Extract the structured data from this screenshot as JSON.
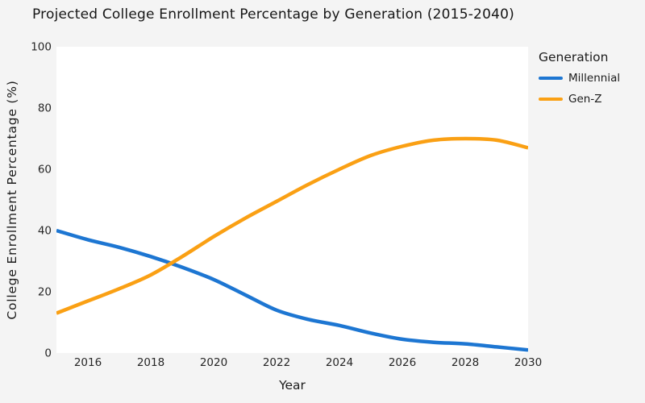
{
  "page": {
    "background": "#f4f4f4",
    "plot_background": "#ffffff",
    "text_color": "#262626"
  },
  "chart_data": {
    "type": "line",
    "title": "Projected College Enrollment Percentage by Generation (2015-2040)",
    "xlabel": "Year",
    "ylabel": "College Enrollment Percentage (%)",
    "legend_title": "Generation",
    "legend_position": "right",
    "grid": false,
    "xlim": [
      2015,
      2030
    ],
    "ylim": [
      0,
      100
    ],
    "x_ticks": [
      2016,
      2018,
      2020,
      2022,
      2024,
      2026,
      2028,
      2030
    ],
    "y_ticks": [
      0,
      20,
      40,
      60,
      80,
      100
    ],
    "x": [
      2015,
      2016,
      2017,
      2018,
      2019,
      2020,
      2021,
      2022,
      2023,
      2024,
      2025,
      2026,
      2027,
      2028,
      2029,
      2030
    ],
    "series": [
      {
        "name": "Millennial",
        "color": "#1d76d2",
        "values": [
          40,
          37,
          34.5,
          31.5,
          28,
          24,
          19,
          14,
          11,
          9,
          6.5,
          4.5,
          3.5,
          3,
          2,
          1
        ]
      },
      {
        "name": "Gen-Z",
        "color": "#faa014",
        "values": [
          13,
          17,
          21,
          25.5,
          31.5,
          38,
          44,
          49.5,
          55,
          60,
          64.5,
          67.5,
          69.5,
          70,
          69.5,
          67
        ]
      }
    ]
  }
}
